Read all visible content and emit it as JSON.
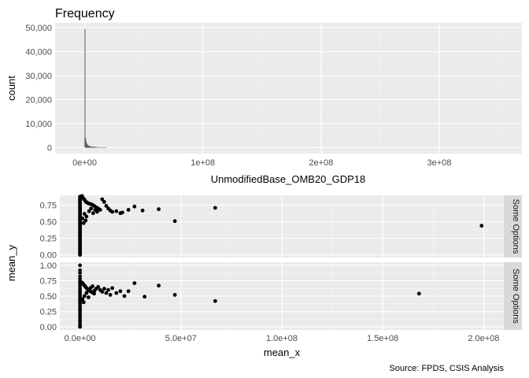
{
  "caption": "Source: FPDS, CSIS Analysis",
  "chart_data": [
    {
      "type": "bar",
      "title": "Frequency",
      "xlabel": "UnmodifiedBase_OMB20_GDP18",
      "ylabel": "count",
      "xlim": [
        -25000000,
        370000000
      ],
      "ylim": [
        -2500,
        52000
      ],
      "x_ticks": [
        0,
        100000000,
        200000000,
        300000000
      ],
      "x_tick_labels": [
        "0e+00",
        "1e+08",
        "2e+08",
        "3e+08"
      ],
      "y_ticks": [
        0,
        10000,
        20000,
        30000,
        40000,
        50000
      ],
      "y_tick_labels": [
        "0",
        "10,000",
        "20,000",
        "30,000",
        "40,000",
        "50,000"
      ],
      "grid": true,
      "bin_width": 500000,
      "bins": [
        {
          "x": 0,
          "count": 49500
        },
        {
          "x": 500000,
          "count": 4200
        },
        {
          "x": 1000000,
          "count": 2600
        },
        {
          "x": 1500000,
          "count": 1700
        },
        {
          "x": 2000000,
          "count": 1250
        },
        {
          "x": 2500000,
          "count": 950
        },
        {
          "x": 3000000,
          "count": 780
        },
        {
          "x": 3500000,
          "count": 640
        },
        {
          "x": 4000000,
          "count": 540
        },
        {
          "x": 4500000,
          "count": 460
        },
        {
          "x": 5000000,
          "count": 400
        },
        {
          "x": 5500000,
          "count": 350
        },
        {
          "x": 6000000,
          "count": 310
        },
        {
          "x": 6500000,
          "count": 280
        },
        {
          "x": 7000000,
          "count": 250
        },
        {
          "x": 7500000,
          "count": 225
        },
        {
          "x": 8000000,
          "count": 205
        },
        {
          "x": 8500000,
          "count": 190
        },
        {
          "x": 9000000,
          "count": 175
        },
        {
          "x": 9500000,
          "count": 160
        },
        {
          "x": 10000000,
          "count": 150
        },
        {
          "x": 11000000,
          "count": 140
        },
        {
          "x": 12000000,
          "count": 130
        },
        {
          "x": 13000000,
          "count": 120
        },
        {
          "x": 14000000,
          "count": 110
        },
        {
          "x": 15000000,
          "count": 100
        },
        {
          "x": 16000000,
          "count": 90
        },
        {
          "x": 17000000,
          "count": 80
        },
        {
          "x": 18000000,
          "count": 70
        }
      ]
    },
    {
      "type": "scatter",
      "xlabel": "mean_x",
      "ylabel": "mean_y",
      "xlim": [
        -10000000,
        210000000
      ],
      "x_ticks": [
        0,
        50000000,
        100000000,
        150000000,
        200000000
      ],
      "x_tick_labels": [
        "0.0e+00",
        "5.0e+07",
        "1.0e+08",
        "1.5e+08",
        "2.0e+08"
      ],
      "grid": true,
      "panels": [
        {
          "strip_label": "Some Options",
          "ylim": [
            -0.04,
            0.9
          ],
          "y_ticks": [
            0,
            0.25,
            0.5,
            0.75
          ],
          "y_tick_labels": [
            "0.00",
            "0.25",
            "0.50",
            "0.75"
          ],
          "points": [
            [
              1000000,
              0.89
            ],
            [
              1500000,
              0.86
            ],
            [
              2000000,
              0.84
            ],
            [
              2500000,
              0.82
            ],
            [
              3000000,
              0.8
            ],
            [
              3500000,
              0.79
            ],
            [
              4000000,
              0.78
            ],
            [
              5000000,
              0.77
            ],
            [
              6000000,
              0.76
            ],
            [
              7000000,
              0.74
            ],
            [
              8000000,
              0.72
            ],
            [
              9000000,
              0.7
            ],
            [
              10000000,
              0.68
            ],
            [
              11000000,
              0.84
            ],
            [
              12000000,
              0.8
            ],
            [
              13000000,
              0.74
            ],
            [
              14000000,
              0.7
            ],
            [
              15000000,
              0.67
            ],
            [
              16000000,
              0.65
            ],
            [
              18000000,
              0.66
            ],
            [
              20000000,
              0.63
            ],
            [
              21000000,
              0.64
            ],
            [
              24000000,
              0.68
            ],
            [
              27000000,
              0.73
            ],
            [
              31000000,
              0.67
            ],
            [
              39000000,
              0.69
            ],
            [
              47000000,
              0.51
            ],
            [
              67000000,
              0.71
            ],
            [
              199000000,
              0.44
            ],
            [
              1200000,
              0.55
            ],
            [
              2200000,
              0.62
            ],
            [
              3200000,
              0.58
            ],
            [
              4500000,
              0.66
            ],
            [
              5500000,
              0.7
            ],
            [
              6500000,
              0.63
            ],
            [
              7500000,
              0.68
            ],
            [
              8500000,
              0.65
            ],
            [
              1800000,
              0.48
            ],
            [
              2800000,
              0.52
            ],
            [
              0,
              0.88
            ],
            [
              0,
              0.86
            ],
            [
              0,
              0.84
            ],
            [
              0,
              0.82
            ],
            [
              0,
              0.8
            ],
            [
              0,
              0.78
            ],
            [
              0,
              0.76
            ],
            [
              0,
              0.74
            ],
            [
              0,
              0.72
            ],
            [
              0,
              0.7
            ],
            [
              0,
              0.68
            ],
            [
              0,
              0.66
            ],
            [
              0,
              0.64
            ],
            [
              0,
              0.62
            ],
            [
              0,
              0.6
            ],
            [
              0,
              0.58
            ],
            [
              0,
              0.56
            ],
            [
              0,
              0.54
            ],
            [
              0,
              0.52
            ],
            [
              0,
              0.5
            ],
            [
              0,
              0.48
            ],
            [
              0,
              0.46
            ],
            [
              0,
              0.44
            ],
            [
              0,
              0.42
            ],
            [
              0,
              0.4
            ],
            [
              0,
              0.38
            ],
            [
              0,
              0.36
            ],
            [
              0,
              0.34
            ],
            [
              0,
              0.32
            ],
            [
              0,
              0.3
            ],
            [
              0,
              0.28
            ],
            [
              0,
              0.26
            ],
            [
              0,
              0.24
            ],
            [
              0,
              0.22
            ],
            [
              0,
              0.2
            ],
            [
              0,
              0.18
            ],
            [
              0,
              0.16
            ],
            [
              0,
              0.14
            ],
            [
              0,
              0.12
            ],
            [
              0,
              0.1
            ],
            [
              0,
              0.08
            ],
            [
              0,
              0.06
            ],
            [
              0,
              0.04
            ],
            [
              0,
              0.02
            ],
            [
              0,
              0.0
            ]
          ]
        },
        {
          "strip_label": "Some Options",
          "ylim": [
            -0.05,
            1.05
          ],
          "y_ticks": [
            0,
            0.25,
            0.5,
            0.75,
            1.0
          ],
          "y_tick_labels": [
            "0.00",
            "0.25",
            "0.50",
            "0.75",
            "1.00"
          ],
          "points": [
            [
              0,
              1.0
            ],
            [
              0,
              0.92
            ],
            [
              0,
              0.88
            ],
            [
              0,
              0.82
            ],
            [
              0,
              0.78
            ],
            [
              0,
              0.74
            ],
            [
              0,
              0.7
            ],
            [
              0,
              0.66
            ],
            [
              0,
              0.62
            ],
            [
              0,
              0.58
            ],
            [
              0,
              0.54
            ],
            [
              0,
              0.5
            ],
            [
              0,
              0.46
            ],
            [
              0,
              0.42
            ],
            [
              0,
              0.38
            ],
            [
              0,
              0.34
            ],
            [
              0,
              0.3
            ],
            [
              0,
              0.26
            ],
            [
              0,
              0.22
            ],
            [
              0,
              0.18
            ],
            [
              0,
              0.14
            ],
            [
              0,
              0.1
            ],
            [
              0,
              0.06
            ],
            [
              0,
              0.02
            ],
            [
              0,
              0.0
            ],
            [
              1000000,
              0.72
            ],
            [
              1500000,
              0.7
            ],
            [
              2000000,
              0.68
            ],
            [
              2500000,
              0.66
            ],
            [
              3000000,
              0.64
            ],
            [
              3500000,
              0.62
            ],
            [
              4000000,
              0.6
            ],
            [
              5000000,
              0.58
            ],
            [
              6000000,
              0.56
            ],
            [
              7000000,
              0.54
            ],
            [
              8000000,
              0.62
            ],
            [
              9000000,
              0.65
            ],
            [
              10000000,
              0.6
            ],
            [
              11000000,
              0.57
            ],
            [
              12000000,
              0.62
            ],
            [
              13000000,
              0.55
            ],
            [
              14000000,
              0.6
            ],
            [
              15000000,
              0.52
            ],
            [
              16000000,
              0.63
            ],
            [
              18000000,
              0.55
            ],
            [
              20000000,
              0.58
            ],
            [
              22000000,
              0.5
            ],
            [
              24000000,
              0.58
            ],
            [
              27000000,
              0.71
            ],
            [
              32000000,
              0.49
            ],
            [
              39000000,
              0.67
            ],
            [
              47000000,
              0.52
            ],
            [
              67000000,
              0.42
            ],
            [
              168000000,
              0.54
            ],
            [
              1200000,
              0.45
            ],
            [
              2200000,
              0.5
            ],
            [
              3200000,
              0.55
            ],
            [
              4200000,
              0.48
            ],
            [
              5200000,
              0.63
            ],
            [
              6200000,
              0.66
            ],
            [
              7200000,
              0.59
            ],
            [
              1800000,
              0.4
            ]
          ]
        }
      ]
    }
  ]
}
